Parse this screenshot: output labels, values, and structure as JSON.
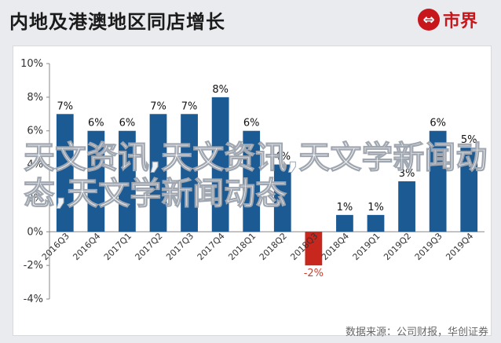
{
  "header": {
    "title": "内地及港澳地区同店增长",
    "logo_mark": "⇔",
    "logo_text": "市界"
  },
  "footer": {
    "source": "数据来源：公司财报，华创证券"
  },
  "overlay": {
    "text": "天文资讯,天文资讯,天文学新闻动态,天文学新闻动态"
  },
  "colors": {
    "bar_positive": "#1c5a94",
    "bar_negative": "#c8271e",
    "grid": "#d9d9d9"
  },
  "chart_data": {
    "type": "bar",
    "categories": [
      "2016Q3",
      "2016Q4",
      "2017Q1",
      "2017Q2",
      "2017Q3",
      "2017Q4",
      "2018Q1",
      "2018Q2",
      "2018Q3",
      "2018Q4",
      "2019Q1",
      "2019Q2",
      "2019Q3",
      "2019Q4"
    ],
    "values": [
      7,
      6,
      6,
      7,
      7,
      8,
      6,
      4,
      -2,
      1,
      1,
      3,
      6,
      5
    ],
    "data_labels": [
      "7%",
      "6%",
      "6%",
      "7%",
      "7%",
      "8%",
      "6%",
      "4%",
      "-2%",
      "1%",
      "1%",
      "3%",
      "6%",
      "5%"
    ],
    "yticks": [
      "10%",
      "8%",
      "6%",
      "4%",
      "2%",
      "0%",
      "-2%",
      "-4%"
    ],
    "ylim": [
      -4,
      10
    ],
    "grid": false,
    "legend": "none"
  }
}
